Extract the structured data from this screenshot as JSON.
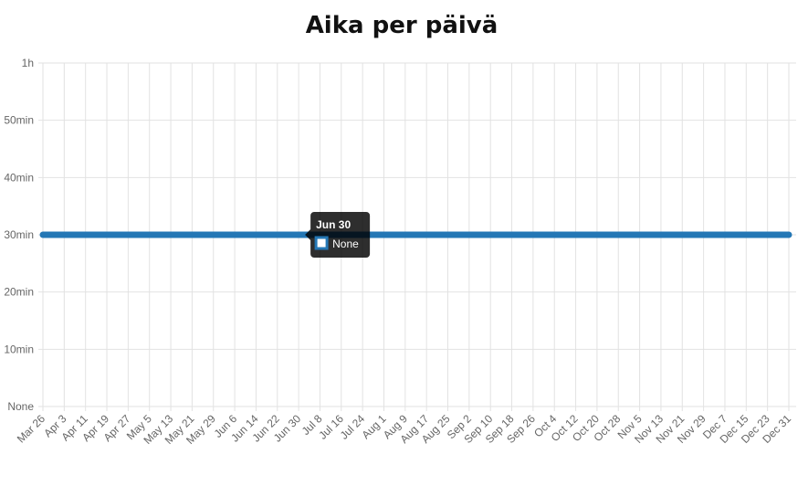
{
  "chart_data": {
    "type": "line",
    "title": "Aika per päivä",
    "categories": [
      "Mar 26",
      "Apr 3",
      "Apr 11",
      "Apr 19",
      "Apr 27",
      "May 5",
      "May 13",
      "May 21",
      "May 29",
      "Jun 6",
      "Jun 14",
      "Jun 22",
      "Jun 30",
      "Jul 8",
      "Jul 16",
      "Jul 24",
      "Aug 1",
      "Aug 9",
      "Aug 17",
      "Aug 25",
      "Sep 2",
      "Sep 10",
      "Sep 18",
      "Sep 26",
      "Oct 4",
      "Oct 12",
      "Oct 20",
      "Oct 28",
      "Nov 5",
      "Nov 13",
      "Nov 21",
      "Nov 29",
      "Dec 7",
      "Dec 15",
      "Dec 23",
      "Dec 31"
    ],
    "series": [
      {
        "color": "#2477b5",
        "values": [
          30,
          30,
          30,
          30,
          30,
          30,
          30,
          30,
          30,
          30,
          30,
          30,
          30,
          30,
          30,
          30,
          30,
          30,
          30,
          30,
          30,
          30,
          30,
          30,
          30,
          30,
          30,
          30,
          30,
          30,
          30,
          30,
          30,
          30,
          30,
          30
        ]
      }
    ],
    "ylim": [
      0,
      60
    ],
    "yticks": [
      {
        "value": 0,
        "label": "None"
      },
      {
        "value": 10,
        "label": "10min"
      },
      {
        "value": 20,
        "label": "20min"
      },
      {
        "value": 30,
        "label": "30min"
      },
      {
        "value": 40,
        "label": "40min"
      },
      {
        "value": 50,
        "label": "50min"
      },
      {
        "value": 60,
        "label": "1h"
      }
    ],
    "grid": true,
    "tooltip": {
      "category_index": 12,
      "label": "None"
    }
  }
}
